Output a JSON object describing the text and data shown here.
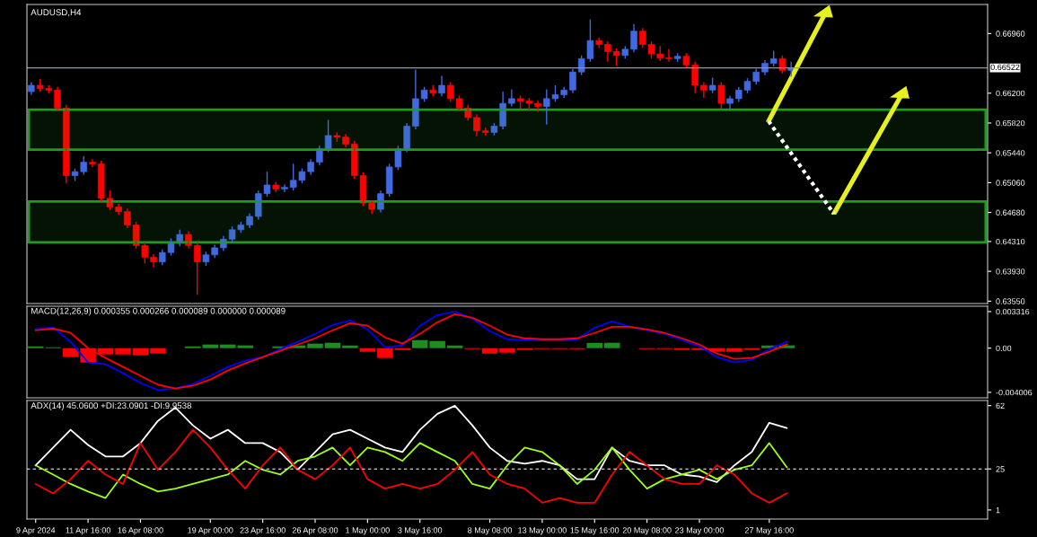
{
  "chart_data": [
    {
      "type": "candlestick",
      "title": "AUDUSD,H4",
      "colors": [
        "#4169e1",
        "#ff0000",
        "#ff0000",
        "#ff0000",
        "#ff0000",
        "#4169e1",
        "#4169e1",
        "#ff0000",
        "#ff0000",
        "#ff0000",
        "#ff0000",
        "#ff0000",
        "#ff0000",
        "#ff0000",
        "#ff0000",
        "#4169e1",
        "#4169e1",
        "#4169e1",
        "#ff0000",
        "#ff0000",
        "#4169e1",
        "#4169e1",
        "#4169e1",
        "#4169e1",
        "#4169e1",
        "#4169e1",
        "#4169e1",
        "#4169e1",
        "#ff0000",
        "#4169e1",
        "#4169e1",
        "#4169e1",
        "#4169e1",
        "#4169e1",
        "#4169e1",
        "#ff0000",
        "#ff0000",
        "#ff0000",
        "#ff0000",
        "#ff0000",
        "#4169e1",
        "#4169e1",
        "#4169e1",
        "#4169e1",
        "#4169e1",
        "#4169e1",
        "#ff0000",
        "#4169e1",
        "#ff0000",
        "#ff0000",
        "#ff0000",
        "#ff0000",
        "#ff0000",
        "#4169e1",
        "#4169e1",
        "#4169e1",
        "#ff0000",
        "#ff0000",
        "#ff0000",
        "#4169e1",
        "#4169e1",
        "#4169e1",
        "#4169e1",
        "#4169e1",
        "#4169e1",
        "#ff0000",
        "#ff0000",
        "#ff0000",
        "#4169e1",
        "#4169e1",
        "#ff0000",
        "#ff0000",
        "#ff0000",
        "#ff0000",
        "#4169e1",
        "#ff0000",
        "#ff0000",
        "#ff0000",
        "#4169e1",
        "#ff0000",
        "#4169e1",
        "#4169e1",
        "#4169e1",
        "#4169e1",
        "#4169e1",
        "#4169e1",
        "#ff0000",
        "#4169e1",
        null,
        null,
        null,
        null,
        null,
        null,
        null,
        null,
        null,
        null,
        null,
        null,
        null,
        null,
        null,
        null,
        null,
        null,
        null,
        null,
        null,
        null
      ],
      "categories": [
        null,
        null,
        null,
        null,
        null,
        null,
        null,
        null,
        null,
        null,
        null,
        null,
        null,
        null,
        null,
        null,
        null,
        null,
        null,
        null,
        null,
        null,
        null,
        null,
        null,
        null,
        null,
        null,
        null,
        null,
        null,
        null,
        null,
        null,
        null,
        null,
        null,
        null,
        null,
        null,
        null,
        null,
        null,
        null,
        null,
        null,
        null,
        null,
        null,
        null,
        null,
        null,
        null,
        null,
        null,
        null,
        null,
        null,
        null,
        null,
        null,
        null,
        null,
        null,
        null,
        null,
        null,
        null,
        null,
        null,
        null,
        null,
        null,
        null,
        null,
        null,
        null,
        null,
        null,
        null,
        null,
        null,
        null,
        null,
        null,
        null,
        null,
        null,
        null,
        null,
        null,
        null,
        null,
        null,
        null,
        null,
        null,
        null,
        null,
        null,
        null,
        null,
        null,
        null,
        null,
        null,
        null,
        null,
        null,
        null
      ],
      "ohlc": [
        [
          0.6622,
          0.6634,
          0.6618,
          0.663
        ],
        [
          0.663,
          0.6638,
          0.6622,
          0.6626
        ],
        [
          0.6626,
          0.663,
          0.662,
          0.6624
        ],
        [
          0.6624,
          0.6628,
          0.6597,
          0.6601
        ],
        [
          0.6601,
          0.6605,
          0.6505,
          0.6515
        ],
        [
          0.6515,
          0.6524,
          0.6508,
          0.652
        ],
        [
          0.652,
          0.654,
          0.6516,
          0.6532
        ],
        [
          0.6532,
          0.6536,
          0.6526,
          0.653
        ],
        [
          0.653,
          0.6534,
          0.6482,
          0.6486
        ],
        [
          0.6486,
          0.6496,
          0.6471,
          0.6475
        ],
        [
          0.6475,
          0.6479,
          0.6465,
          0.6469
        ],
        [
          0.6469,
          0.6473,
          0.6448,
          0.6452
        ],
        [
          0.6452,
          0.6456,
          0.6422,
          0.6426
        ],
        [
          0.6426,
          0.643,
          0.6403,
          0.6411
        ],
        [
          0.6411,
          0.6415,
          0.6398,
          0.6405
        ],
        [
          0.6405,
          0.6421,
          0.6401,
          0.6417
        ],
        [
          0.6417,
          0.6435,
          0.6413,
          0.6429
        ],
        [
          0.6429,
          0.6446,
          0.6425,
          0.644
        ],
        [
          0.644,
          0.6444,
          0.6422,
          0.6426
        ],
        [
          0.6426,
          0.643,
          0.6363,
          0.6405
        ],
        [
          0.6405,
          0.6418,
          0.64,
          0.6414
        ],
        [
          0.6414,
          0.6427,
          0.641,
          0.6423
        ],
        [
          0.6423,
          0.6438,
          0.6419,
          0.6434
        ],
        [
          0.6434,
          0.645,
          0.643,
          0.6446
        ],
        [
          0.6446,
          0.6456,
          0.6442,
          0.6452
        ],
        [
          0.6452,
          0.6467,
          0.6448,
          0.6463
        ],
        [
          0.6463,
          0.6496,
          0.6459,
          0.6492
        ],
        [
          0.6492,
          0.652,
          0.6488,
          0.6503
        ],
        [
          0.6503,
          0.6507,
          0.6494,
          0.6498
        ],
        [
          0.6498,
          0.6504,
          0.6494,
          0.65
        ],
        [
          0.65,
          0.653,
          0.6496,
          0.6509
        ],
        [
          0.6509,
          0.6524,
          0.6505,
          0.652
        ],
        [
          0.652,
          0.6536,
          0.6516,
          0.6532
        ],
        [
          0.6532,
          0.6553,
          0.6528,
          0.6549
        ],
        [
          0.6549,
          0.6586,
          0.6545,
          0.6566
        ],
        [
          0.6566,
          0.657,
          0.6558,
          0.6564
        ],
        [
          0.6564,
          0.6568,
          0.6551,
          0.6555
        ],
        [
          0.6555,
          0.6559,
          0.6511,
          0.6515
        ],
        [
          0.6515,
          0.6519,
          0.6476,
          0.648
        ],
        [
          0.648,
          0.6484,
          0.6466,
          0.6472
        ],
        [
          0.6472,
          0.6496,
          0.6468,
          0.6492
        ],
        [
          0.6492,
          0.653,
          0.6488,
          0.6526
        ],
        [
          0.6526,
          0.6553,
          0.6522,
          0.6549
        ],
        [
          0.6549,
          0.6582,
          0.6545,
          0.6578
        ],
        [
          0.6578,
          0.665,
          0.6574,
          0.6613
        ],
        [
          0.6613,
          0.6628,
          0.6609,
          0.6624
        ],
        [
          0.6624,
          0.663,
          0.6616,
          0.662
        ],
        [
          0.662,
          0.6642,
          0.6616,
          0.663
        ],
        [
          0.663,
          0.6634,
          0.6609,
          0.6613
        ],
        [
          0.6613,
          0.6617,
          0.6597,
          0.6601
        ],
        [
          0.6601,
          0.6605,
          0.6585,
          0.6589
        ],
        [
          0.6589,
          0.6593,
          0.6565,
          0.6572
        ],
        [
          0.6572,
          0.6576,
          0.6566,
          0.657
        ],
        [
          0.657,
          0.6582,
          0.6566,
          0.6578
        ],
        [
          0.6578,
          0.6622,
          0.6574,
          0.6607
        ],
        [
          0.6607,
          0.6625,
          0.6603,
          0.6613
        ],
        [
          0.6613,
          0.6617,
          0.66,
          0.661
        ],
        [
          0.661,
          0.6614,
          0.6598,
          0.6607
        ],
        [
          0.6607,
          0.6611,
          0.6596,
          0.6603
        ],
        [
          0.6603,
          0.6625,
          0.658,
          0.6613
        ],
        [
          0.6613,
          0.663,
          0.6609,
          0.6618
        ],
        [
          0.6618,
          0.6628,
          0.6614,
          0.6624
        ],
        [
          0.6624,
          0.6651,
          0.662,
          0.6647
        ],
        [
          0.6647,
          0.6668,
          0.6643,
          0.6664
        ],
        [
          0.6664,
          0.6714,
          0.666,
          0.6687
        ],
        [
          0.6687,
          0.6691,
          0.6678,
          0.6682
        ],
        [
          0.6682,
          0.6686,
          0.666,
          0.6673
        ],
        [
          0.6673,
          0.6677,
          0.6655,
          0.6668
        ],
        [
          0.6668,
          0.668,
          0.6664,
          0.6676
        ],
        [
          0.6676,
          0.6708,
          0.6672,
          0.6699
        ],
        [
          0.6699,
          0.6703,
          0.6678,
          0.6682
        ],
        [
          0.6682,
          0.6686,
          0.6664,
          0.667
        ],
        [
          0.667,
          0.668,
          0.6661,
          0.6665
        ],
        [
          0.6665,
          0.6676,
          0.666,
          0.6664
        ],
        [
          0.6664,
          0.6671,
          0.666,
          0.6667
        ],
        [
          0.6667,
          0.6671,
          0.6652,
          0.6656
        ],
        [
          0.6656,
          0.666,
          0.662,
          0.663
        ],
        [
          0.663,
          0.6634,
          0.6614,
          0.6624
        ],
        [
          0.6624,
          0.664,
          0.662,
          0.663
        ],
        [
          0.663,
          0.6634,
          0.66,
          0.6607
        ],
        [
          0.6607,
          0.6617,
          0.66,
          0.6613
        ],
        [
          0.6613,
          0.6628,
          0.6609,
          0.6624
        ],
        [
          0.6624,
          0.6639,
          0.662,
          0.6635
        ],
        [
          0.6635,
          0.6651,
          0.6631,
          0.6647
        ],
        [
          0.6647,
          0.6662,
          0.6643,
          0.6658
        ],
        [
          0.6658,
          0.6674,
          0.6654,
          0.6664
        ],
        [
          0.6664,
          0.6668,
          0.6645,
          0.6649
        ],
        [
          0.6649,
          0.666,
          0.6641,
          0.6652
        ],
        null,
        null,
        null,
        null,
        null,
        null,
        null,
        null,
        null,
        null,
        null,
        null,
        null,
        null,
        null,
        null,
        null,
        null,
        null,
        null,
        null,
        null
      ],
      "ylim": [
        0.6352,
        0.6733
      ],
      "yticks": [
        {
          "value": 0.6355,
          "label": "0.63550"
        },
        {
          "value": 0.6393,
          "label": "0.63930"
        },
        {
          "value": 0.6431,
          "label": "0.64310"
        },
        {
          "value": 0.6468,
          "label": "0.64680"
        },
        {
          "value": 0.6506,
          "label": "0.65060"
        },
        {
          "value": 0.6544,
          "label": "0.65440"
        },
        {
          "value": 0.6582,
          "label": "0.65820"
        },
        {
          "value": 0.662,
          "label": "0.66200"
        },
        {
          "value": 0.6696,
          "label": "0.66960"
        }
      ],
      "ref_lines": [
        {
          "axis": "y",
          "value": 0.66522,
          "label": "0.66522",
          "color": "#8c9aa8"
        }
      ],
      "bands": [
        {
          "axis": "y",
          "from": 0.6548,
          "to": 0.6599,
          "color": "#1f9b1f"
        },
        {
          "axis": "y",
          "from": 0.643,
          "to": 0.6482,
          "color": "#1f9b1f"
        }
      ],
      "tick_labels": "y"
    },
    {
      "type": "line",
      "title": "MACD(12,26,9) 0.000355 0.000266 0.000089 0.000000 0.000089",
      "categories": [
        null,
        null,
        null,
        null,
        null,
        null,
        null,
        null,
        null,
        null,
        null,
        null,
        null,
        null,
        null,
        null,
        null,
        null,
        null,
        null,
        null,
        null,
        null,
        null,
        null,
        null,
        null,
        null,
        null,
        null,
        null,
        null,
        null,
        null,
        null,
        null,
        null,
        null,
        null,
        null,
        null,
        null,
        null,
        null,
        null,
        null,
        null,
        null,
        null,
        null,
        null,
        null,
        null,
        null,
        null
      ],
      "series": [
        {
          "type": "bar",
          "colors": [
            "#1e8c1e",
            "#1e8c1e",
            "#ff0000",
            "#ff0000",
            "#ff0000",
            "#ff0000",
            "#ff0000",
            "#ff0000",
            "#1e8c1e",
            "#1e8c1e",
            "#1e8c1e",
            "#1e8c1e",
            "#1e8c1e",
            "#1e8c1e",
            "#1e8c1e",
            "#1e8c1e",
            "#1e8c1e",
            "#1e8c1e",
            "#1e8c1e",
            "#ff0000",
            "#ff0000",
            "#ff0000",
            "#1e8c1e",
            "#1e8c1e",
            "#1e8c1e",
            "#ff0000",
            "#ff0000",
            "#ff0000",
            "#ff0000",
            "#ff0000",
            "#ff0000",
            "#ff0000",
            "#1e8c1e",
            "#1e8c1e",
            "#1e8c1e",
            "#ff0000",
            "#ff0000",
            "#ff0000",
            "#ff0000",
            "#ff0000",
            "#ff0000",
            "#ff0000",
            "#1e8c1e",
            "#1e8c1e",
            null,
            null,
            null,
            null,
            null,
            null,
            null,
            null,
            null,
            null,
            null
          ],
          "values": [
            0.00016,
            8e-05,
            -0.00081,
            -0.0013,
            -0.00057,
            -0.00057,
            -0.00065,
            -0.00049,
            0.0,
            0.00016,
            0.00033,
            0.00033,
            0.00025,
            0.0,
            0.00016,
            0.00025,
            0.00041,
            0.00049,
            0.00024,
            -0.00033,
            -0.00089,
            -0.00017,
            0.00073,
            0.00065,
            0.00024,
            -8e-05,
            -0.00049,
            -0.00041,
            -0.00016,
            -8e-05,
            -8e-05,
            -8e-05,
            0.00048,
            0.00049,
            0.0,
            -8e-05,
            -8e-05,
            -0.00016,
            -0.00016,
            -0.00032,
            -0.00033,
            -0.00016,
            0.00024,
            0.00025,
            null,
            null,
            null,
            null,
            null,
            null,
            null,
            null,
            null,
            null,
            null
          ]
        },
        {
          "type": "line",
          "color": "#0000ff",
          "values": [
            0.00178,
            0.00186,
            0.00057,
            -0.0013,
            -0.00146,
            -0.00227,
            -0.00316,
            -0.00381,
            -0.00365,
            -0.00324,
            -0.00251,
            -0.0017,
            -0.00113,
            -0.00081,
            -8e-05,
            0.00057,
            0.0013,
            0.00211,
            0.00251,
            0.0017,
            8e-05,
            0.00024,
            0.00203,
            0.003,
            0.0033,
            0.00267,
            0.00154,
            0.00081,
            0.00073,
            0.00073,
            0.00073,
            0.00081,
            0.00186,
            0.00243,
            0.00194,
            0.00162,
            0.0013,
            0.00073,
            0.00016,
            -0.00081,
            -0.0013,
            -0.00105,
            -8e-05,
            0.00057,
            null,
            null,
            null,
            null,
            null,
            null,
            null,
            null,
            null,
            null,
            null
          ]
        },
        {
          "type": "line",
          "color": "#ff0000",
          "values": [
            0.00162,
            0.00178,
            0.00138,
            0.0,
            -0.00089,
            -0.0017,
            -0.00251,
            -0.00332,
            -0.00365,
            -0.0034,
            -0.00284,
            -0.00203,
            -0.00138,
            -0.00081,
            -0.00024,
            0.00032,
            0.00089,
            0.00162,
            0.00227,
            0.00203,
            0.00097,
            0.00041,
            0.0013,
            0.00235,
            0.00308,
            0.00275,
            0.00203,
            0.00122,
            0.00089,
            0.00081,
            0.00081,
            0.00089,
            0.00138,
            0.00194,
            0.00194,
            0.0017,
            0.00138,
            0.00089,
            0.00032,
            -0.00049,
            -0.00097,
            -0.00089,
            -0.00032,
            0.00032,
            null,
            null,
            null,
            null,
            null,
            null,
            null,
            null,
            null,
            null,
            null
          ]
        }
      ],
      "ylim": [
        -0.0045,
        0.0038
      ],
      "yticks": [
        {
          "value": 0.003316,
          "label": "0.003316"
        },
        {
          "value": 0,
          "label": "0.00"
        },
        {
          "value": -0.004006,
          "label": "-0.004006"
        }
      ],
      "tick_labels": "y"
    },
    {
      "type": "line",
      "title": "ADX(14) 45.0600 +DI:23.0901 -DI:9.9538",
      "categories": [
        "9 Apr 2024",
        null,
        null,
        "11 Apr 16:00",
        null,
        null,
        "16 Apr 08:00",
        null,
        null,
        null,
        "19 Apr 00:00",
        null,
        null,
        "23 Apr 16:00",
        null,
        null,
        "26 Apr 08:00",
        null,
        null,
        "1 May 00:00",
        null,
        null,
        "3 May 16:00",
        null,
        null,
        null,
        "8 May 08:00",
        null,
        null,
        "13 May 00:00",
        null,
        null,
        "15 May 16:00",
        null,
        null,
        "20 May 08:00",
        null,
        null,
        "23 May 00:00",
        null,
        null,
        null,
        "27 May 16:00",
        null,
        null,
        null,
        null,
        null,
        null,
        null,
        null,
        null,
        null,
        null,
        null
      ],
      "series": [
        {
          "type": "line",
          "color": "#ffffff",
          "values": [
            27.1,
            37.5,
            47.9,
            39.0,
            32.3,
            32.3,
            40.1,
            53.1,
            60.9,
            50.5,
            42.7,
            47.9,
            40.1,
            40.1,
            34.9,
            24.5,
            34.9,
            45.3,
            47.9,
            42.7,
            37.5,
            34.9,
            47.9,
            57.2,
            61.9,
            50.5,
            37.5,
            29.7,
            28.1,
            29.7,
            27.1,
            19.0,
            19.0,
            37.5,
            29.7,
            27.1,
            27.1,
            21.7,
            20.6,
            17.3,
            27.1,
            34.9,
            52.0,
            48.9,
            null,
            null,
            null,
            null,
            null,
            null,
            null,
            null,
            null,
            null,
            null
          ]
        },
        {
          "type": "line",
          "color": "#9aff1a",
          "values": [
            27.1,
            21.7,
            16.2,
            11.8,
            8.0,
            21.7,
            16.2,
            11.8,
            13.5,
            16.2,
            19.0,
            21.7,
            29.7,
            24.5,
            21.7,
            29.7,
            32.3,
            37.5,
            27.1,
            37.5,
            34.9,
            29.7,
            40.1,
            34.9,
            29.7,
            16.2,
            13.5,
            27.1,
            37.5,
            34.9,
            27.1,
            16.2,
            24.5,
            37.5,
            24.5,
            13.5,
            19.0,
            21.7,
            24.5,
            19.0,
            24.5,
            27.1,
            40.1,
            26.0,
            null,
            null,
            null,
            null,
            null,
            null,
            null,
            null,
            null,
            null,
            null
          ]
        },
        {
          "type": "line",
          "color": "#ff0000",
          "values": [
            16.2,
            10.7,
            19.0,
            29.7,
            21.7,
            16.2,
            40.1,
            24.5,
            34.9,
            47.9,
            37.5,
            24.5,
            13.5,
            27.1,
            37.5,
            24.5,
            19.0,
            27.1,
            37.5,
            19.0,
            13.5,
            16.2,
            13.5,
            16.2,
            24.5,
            34.9,
            21.7,
            16.2,
            13.5,
            5.2,
            8.0,
            5.2,
            5.2,
            21.7,
            34.9,
            27.1,
            19.0,
            16.2,
            16.2,
            27.1,
            21.7,
            10.7,
            5.2,
            10.7,
            null,
            null,
            null,
            null,
            null,
            null,
            null,
            null,
            null,
            null,
            null
          ]
        }
      ],
      "ylim": [
        -4.3,
        65
      ],
      "yticks": [
        1,
        25,
        62
      ],
      "ref_lines": [
        {
          "axis": "y",
          "value": 25,
          "color": "#ffffff",
          "line_style": "dashed"
        }
      ]
    }
  ]
}
